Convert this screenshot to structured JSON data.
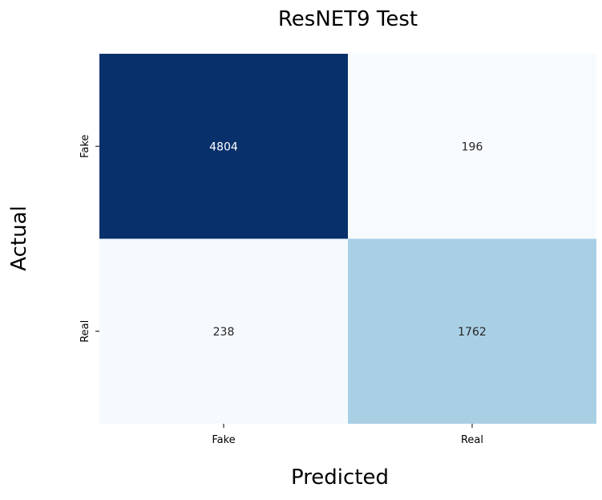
{
  "chart_data": {
    "type": "heatmap",
    "title": "ResNET9 Test",
    "xlabel": "Predicted",
    "ylabel": "Actual",
    "x_categories": [
      "Fake",
      "Real"
    ],
    "y_categories": [
      "Fake",
      "Real"
    ],
    "values": [
      [
        4804,
        196
      ],
      [
        238,
        1762
      ]
    ],
    "colormap": "Blues",
    "value_range": [
      196,
      4804
    ],
    "colorbar": false,
    "grid": false
  },
  "colors": {
    "low": "#f7fbff",
    "mid": "#abd0e6",
    "high": "#08306b",
    "text_dark": "#262626",
    "text_light": "#ffffff"
  }
}
